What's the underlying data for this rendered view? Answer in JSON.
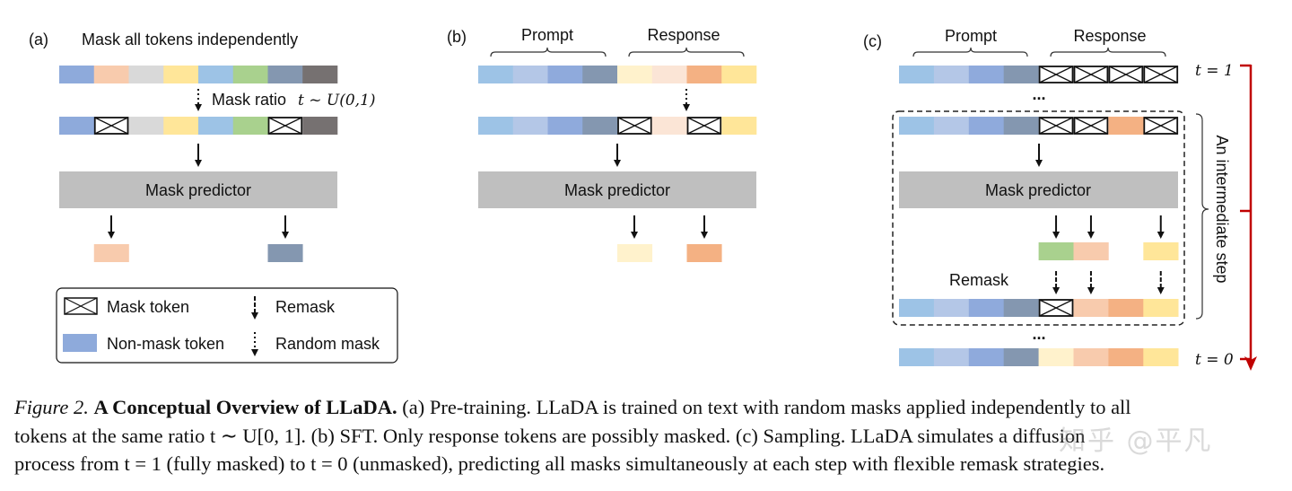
{
  "colors": {
    "blue": "#8eaadb",
    "peach": "#f8cbad",
    "lightgray": "#d9d9d9",
    "yellow": "#ffe699",
    "skyblue": "#9dc3e6",
    "green": "#a9d18e",
    "slate": "#8497b0",
    "darkgray": "#767171",
    "p1": "#9dc3e6",
    "p2": "#b4c7e7",
    "p3": "#8faadc",
    "p4": "#8497b0",
    "cream": "#fff2cc",
    "blush": "#fbe5d6",
    "orange": "#f4b183",
    "predictor": "#bfbfbf",
    "red": "#c00000"
  },
  "panel_a": {
    "label": "(a)",
    "title": "Mask all tokens independently",
    "mask_ratio_text": "Mask ratio",
    "mask_ratio_math": "t ~ U(0,1)",
    "predictor": "Mask predictor",
    "rows": {
      "input": [
        "blue",
        "peach",
        "lightgray",
        "yellow",
        "skyblue",
        "green",
        "slate",
        "darkgray"
      ],
      "masked": [
        "blue",
        "mask",
        "lightgray",
        "yellow",
        "skyblue",
        "green",
        "mask",
        "darkgray"
      ],
      "output": [
        null,
        "peach",
        null,
        null,
        null,
        null,
        "slate",
        null
      ]
    }
  },
  "legend": {
    "mask_token": "Mask token",
    "non_mask_token": "Non-mask token",
    "remask": "Remask",
    "random_mask": "Random mask"
  },
  "panel_b": {
    "label": "(b)",
    "prompt": "Prompt",
    "response": "Response",
    "predictor": "Mask predictor",
    "rows": {
      "input": [
        "p1",
        "p2",
        "p3",
        "p4",
        "cream",
        "blush",
        "orange",
        "yellow"
      ],
      "masked": [
        "p1",
        "p2",
        "p3",
        "p4",
        "mask",
        "blush",
        "mask",
        "yellow"
      ],
      "output": [
        null,
        null,
        null,
        null,
        "cream",
        null,
        "orange",
        null
      ]
    }
  },
  "panel_c": {
    "label": "(c)",
    "prompt": "Prompt",
    "response": "Response",
    "predictor": "Mask predictor",
    "remask": "Remask",
    "ellipsis": "...",
    "t1": "t = 1",
    "t0": "t = 0",
    "step_label": "An intermediate step",
    "rows": {
      "start": [
        "p1",
        "p2",
        "p3",
        "p4",
        "mask",
        "mask",
        "mask",
        "mask"
      ],
      "step_in": [
        "p1",
        "p2",
        "p3",
        "p4",
        "mask",
        "mask",
        "orange",
        "mask"
      ],
      "predicted": [
        null,
        null,
        null,
        null,
        "green",
        "peach",
        null,
        "yellow"
      ],
      "step_out": [
        "p1",
        "p2",
        "p3",
        "p4",
        "mask",
        "peach",
        "orange",
        "yellow"
      ],
      "final": [
        "p1",
        "p2",
        "p3",
        "p4",
        "cream",
        "peach",
        "orange",
        "yellow"
      ]
    }
  },
  "caption": {
    "fig": "Figure 2.",
    "title": "A Conceptual Overview of LLaDA.",
    "line1": "(a) Pre-training. LLaDA is trained on text with random masks applied independently to all",
    "line2": "tokens at the same ratio t ∼ U[0, 1]. (b) SFT. Only response tokens are possibly masked. (c) Sampling. LLaDA simulates a diffusion",
    "line3": "process from t = 1 (fully masked) to t = 0 (unmasked), predicting all masks simultaneously at each step with flexible remask strategies."
  },
  "watermark": "知乎 @平凡"
}
